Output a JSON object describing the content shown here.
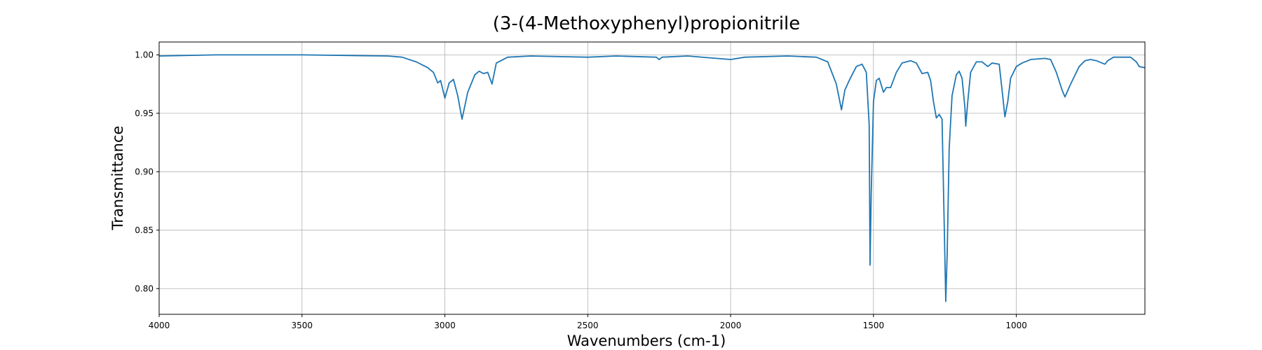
{
  "chart_data": {
    "type": "line",
    "title": "(3-(4-Methoxyphenyl)propionitrile",
    "x_label": "Wavenumbers (cm-1)",
    "y_label": "Transmittance",
    "color": "#1f77b4",
    "grid": true,
    "xlim": [
      4000,
      550
    ],
    "ylim": [
      0.778,
      1.011
    ],
    "xticks": [
      4000,
      3500,
      3000,
      2500,
      2000,
      1500,
      1000
    ],
    "yticks": [
      {
        "value": 0.8,
        "label": "0.80"
      },
      0.85,
      {
        "value": 0.9,
        "label": "0.90"
      },
      0.95,
      {
        "value": 1.0,
        "label": "1.00"
      }
    ],
    "x": [
      4000,
      3800,
      3500,
      3200,
      3150,
      3100,
      3060,
      3040,
      3025,
      3015,
      3000,
      2985,
      2970,
      2955,
      2940,
      2920,
      2895,
      2880,
      2865,
      2850,
      2835,
      2820,
      2780,
      2700,
      2500,
      2400,
      2260,
      2250,
      2240,
      2150,
      2050,
      2000,
      1950,
      1800,
      1700,
      1660,
      1630,
      1612,
      1600,
      1585,
      1560,
      1540,
      1525,
      1515,
      1512,
      1508,
      1500,
      1490,
      1480,
      1465,
      1455,
      1440,
      1420,
      1400,
      1370,
      1350,
      1330,
      1310,
      1300,
      1290,
      1280,
      1270,
      1260,
      1252,
      1247,
      1242,
      1235,
      1225,
      1210,
      1200,
      1190,
      1180,
      1177,
      1170,
      1160,
      1140,
      1120,
      1100,
      1085,
      1060,
      1050,
      1040,
      1030,
      1020,
      1000,
      980,
      950,
      900,
      880,
      860,
      840,
      830,
      810,
      780,
      760,
      740,
      720,
      700,
      690,
      680,
      660,
      600,
      580,
      570,
      550
    ],
    "values": [
      0.999,
      1.0,
      1.0,
      0.999,
      0.998,
      0.994,
      0.989,
      0.985,
      0.976,
      0.978,
      0.963,
      0.976,
      0.979,
      0.965,
      0.945,
      0.968,
      0.983,
      0.986,
      0.984,
      0.985,
      0.975,
      0.993,
      0.998,
      0.999,
      0.998,
      0.999,
      0.998,
      0.996,
      0.998,
      0.999,
      0.997,
      0.996,
      0.998,
      0.999,
      0.998,
      0.994,
      0.975,
      0.953,
      0.97,
      0.978,
      0.99,
      0.992,
      0.985,
      0.94,
      0.82,
      0.88,
      0.96,
      0.978,
      0.98,
      0.968,
      0.972,
      0.972,
      0.985,
      0.993,
      0.995,
      0.993,
      0.984,
      0.985,
      0.978,
      0.96,
      0.946,
      0.949,
      0.945,
      0.85,
      0.789,
      0.83,
      0.92,
      0.965,
      0.983,
      0.986,
      0.98,
      0.955,
      0.939,
      0.96,
      0.985,
      0.994,
      0.994,
      0.99,
      0.993,
      0.992,
      0.97,
      0.947,
      0.96,
      0.98,
      0.99,
      0.993,
      0.996,
      0.997,
      0.996,
      0.985,
      0.97,
      0.964,
      0.975,
      0.99,
      0.995,
      0.996,
      0.995,
      0.993,
      0.992,
      0.995,
      0.998,
      0.998,
      0.994,
      0.99,
      0.989
    ]
  }
}
